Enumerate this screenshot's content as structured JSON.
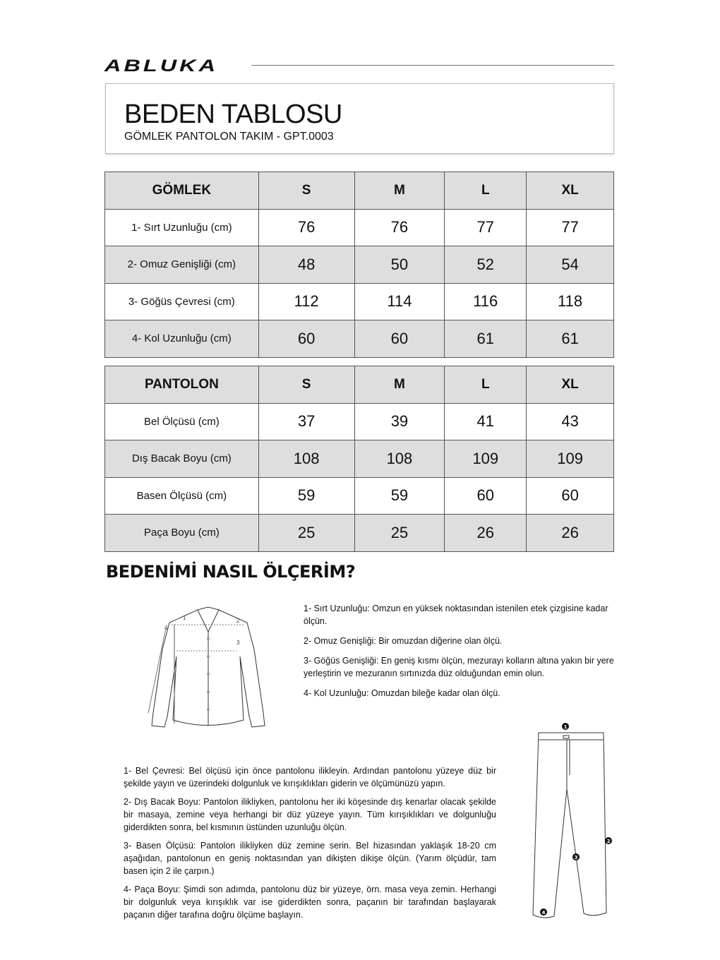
{
  "brand": "ABLUKA",
  "header": {
    "title": "BEDEN TABLOSU",
    "subtitle": "GÖMLEK PANTOLON TAKIM - GPT.0003"
  },
  "shirt_table": {
    "headers": [
      "GÖMLEK",
      "S",
      "M",
      "L",
      "XL"
    ],
    "rows": [
      {
        "label": "1- Sırt Uzunluğu (cm)",
        "values": [
          "76",
          "76",
          "77",
          "77"
        ]
      },
      {
        "label": "2- Omuz Genişliği (cm)",
        "values": [
          "48",
          "50",
          "52",
          "54"
        ]
      },
      {
        "label": "3- Göğüs Çevresi (cm)",
        "values": [
          "112",
          "114",
          "116",
          "118"
        ]
      },
      {
        "label": "4- Kol Uzunluğu (cm)",
        "values": [
          "60",
          "60",
          "61",
          "61"
        ]
      }
    ]
  },
  "pants_table": {
    "headers": [
      "PANTOLON",
      "S",
      "M",
      "L",
      "XL"
    ],
    "rows": [
      {
        "label": "Bel Ölçüsü (cm)",
        "values": [
          "37",
          "39",
          "41",
          "43"
        ]
      },
      {
        "label": "Dış Bacak Boyu (cm)",
        "values": [
          "108",
          "108",
          "109",
          "109"
        ]
      },
      {
        "label": "Basen Ölçüsü (cm)",
        "values": [
          "59",
          "59",
          "60",
          "60"
        ]
      },
      {
        "label": "Paça Boyu (cm)",
        "values": [
          "25",
          "25",
          "26",
          "26"
        ]
      }
    ]
  },
  "howto_title": "BEDENİMİ NASIL ÖLÇERİM?",
  "shirt_instructions": [
    "1- Sırt Uzunluğu: Omzun en yüksek noktasından istenilen etek çizgisine kadar ölçün.",
    "2- Omuz Genişliği: Bir omuzdan diğerine olan ölçü.",
    "3- Göğüs Genişliği: En geniş kısmı ölçün, mezurayı kolların altına yakın bir yere yerleştirin ve mezuranın sırtınızda düz olduğundan emin olun.",
    "4- Kol Uzunluğu: Omuzdan bileğe kadar olan ölçü."
  ],
  "pants_instructions": [
    "1- Bel Çevresi: Bel ölçüsü için önce pantolonu ilikleyin. Ardından pantolonu yüzeye düz bir şekilde yayın ve üzerindeki dolgunluk ve kırışıklıkları giderin ve ölçümünüzü yapın.",
    "2- Dış Bacak Boyu: Pantolon ilikliyken, pantolonu her iki köşesinde dış kenarlar olacak şekilde bir masaya, zemine veya herhangi bir düz yüzeye yayın. Tüm kırışıklıkları ve dolgunluğu giderdikten sonra, bel kısmının üstünden uzunluğu ölçün.",
    "3- Basen Ölçüsü: Pantolon ilikliyken düz zemine serin. Bel hizasından yaklaşık 18-20 cm aşağıdan, pantolonun en geniş noktasından yan dikişten dikişe ölçün. (Yarım ölçüdür, tam basen için 2 ile çarpın.)",
    "4- Paça Boyu: Şimdi son adımda, pantolonu düz bir yüzeye, örn. masa veya zemin. Herhangi bir dolgunluk veya kırışıklık var ise giderdikten sonra, paçanın bir tarafından başlayarak paçanın diğer tarafına doğru ölçüme başlayın."
  ],
  "diagram_labels": {
    "shirt": [
      "1",
      "2",
      "3",
      "4"
    ],
    "pants": [
      "1",
      "2",
      "3",
      "4"
    ]
  },
  "colors": {
    "header_row": "#dedede",
    "text": "#111111"
  }
}
